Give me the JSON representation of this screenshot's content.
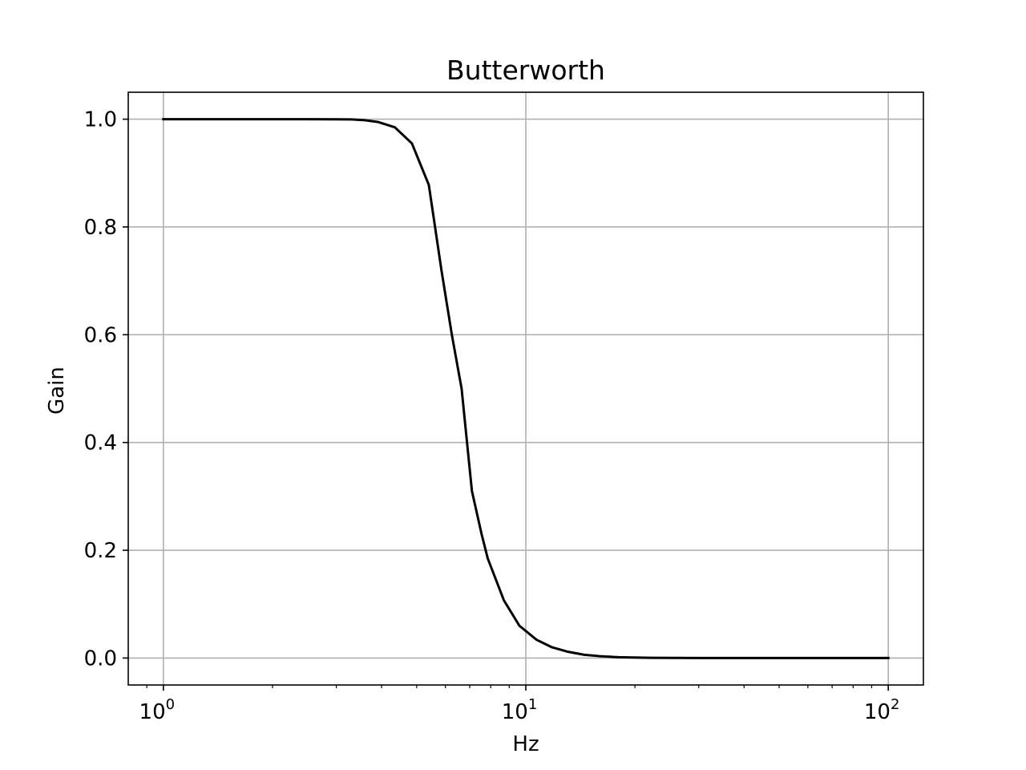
{
  "chart_data": {
    "type": "line",
    "title": "Butterworth",
    "xlabel": "Hz",
    "ylabel": "Gain",
    "xscale": "log",
    "xlim": [
      0.8,
      125
    ],
    "ylim": [
      -0.05,
      1.05
    ],
    "xticks": [
      {
        "value": 1,
        "base": "10",
        "exp": "0"
      },
      {
        "value": 10,
        "base": "10",
        "exp": "1"
      },
      {
        "value": 100,
        "base": "10",
        "exp": "2"
      }
    ],
    "yticks": [
      {
        "value": 0.0,
        "label": "0.0"
      },
      {
        "value": 0.2,
        "label": "0.2"
      },
      {
        "value": 0.4,
        "label": "0.4"
      },
      {
        "value": 0.6,
        "label": "0.6"
      },
      {
        "value": 0.8,
        "label": "0.8"
      },
      {
        "value": 1.0,
        "label": "1.0"
      }
    ],
    "grid": true,
    "colors": {
      "line": "#000000",
      "grid": "#b0b0b0",
      "frame": "#000000"
    },
    "series": [
      {
        "x": [
          1.0,
          1.5,
          2.0,
          2.5,
          3.0,
          3.3,
          3.6,
          3.9,
          4.35,
          4.85,
          5.4,
          5.85,
          6.25,
          6.65,
          7.1,
          7.55,
          7.85,
          8.7,
          9.6,
          10.7,
          11.8,
          13.0,
          14.5,
          16.0,
          18.0,
          22.0,
          30.0,
          50.0,
          100.0
        ],
        "y": [
          1.0,
          1.0,
          1.0,
          1.0,
          0.9998,
          0.9995,
          0.998,
          0.995,
          0.985,
          0.955,
          0.878,
          0.72,
          0.6,
          0.5,
          0.31,
          0.23,
          0.185,
          0.107,
          0.06,
          0.034,
          0.02,
          0.012,
          0.006,
          0.0035,
          0.0015,
          0.0004,
          0.0001,
          0.0,
          0.0
        ]
      }
    ]
  }
}
